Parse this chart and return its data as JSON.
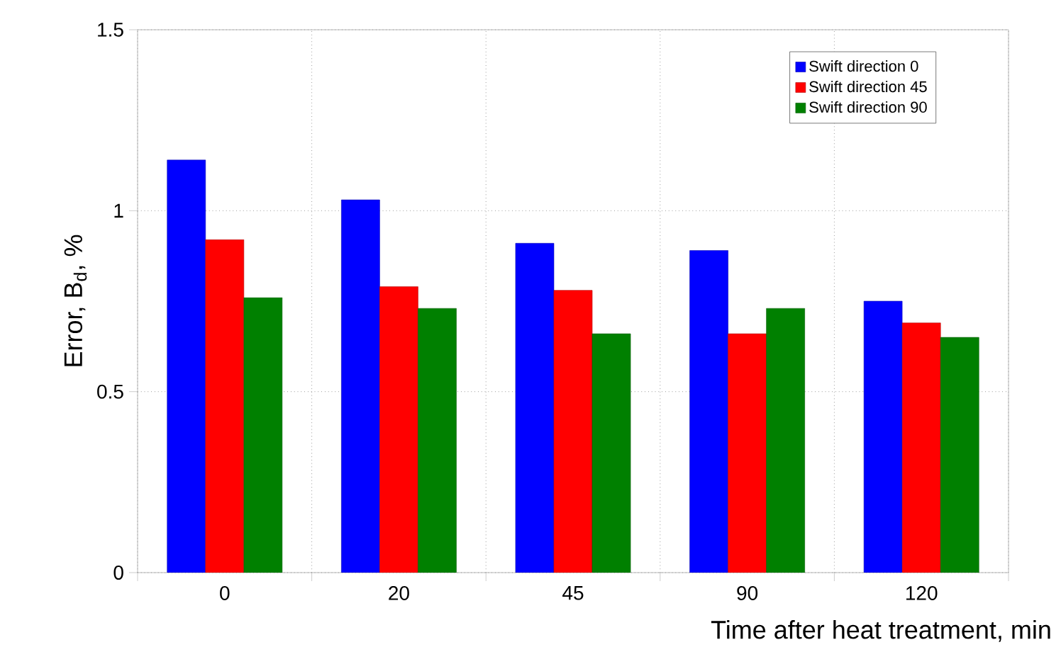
{
  "chart_data": {
    "type": "bar",
    "xlabel": "Time after heat treatment, min",
    "ylabel": "Error, B$_{d}$, %",
    "categories": [
      "0",
      "20",
      "45",
      "90",
      "120"
    ],
    "series": [
      {
        "name": "Swift direction 0",
        "color": "#0000ff",
        "values": [
          1.14,
          1.03,
          0.91,
          0.89,
          0.75
        ]
      },
      {
        "name": "Swift direction 45",
        "color": "#ff0000",
        "values": [
          0.92,
          0.79,
          0.78,
          0.66,
          0.69
        ]
      },
      {
        "name": "Swift direction 90",
        "color": "#008000",
        "values": [
          0.76,
          0.73,
          0.66,
          0.73,
          0.65
        ]
      }
    ],
    "ylim": [
      0,
      1.5
    ],
    "yticks": [
      0,
      0.5,
      1,
      1.5
    ],
    "grid": true,
    "legend": "top right"
  }
}
